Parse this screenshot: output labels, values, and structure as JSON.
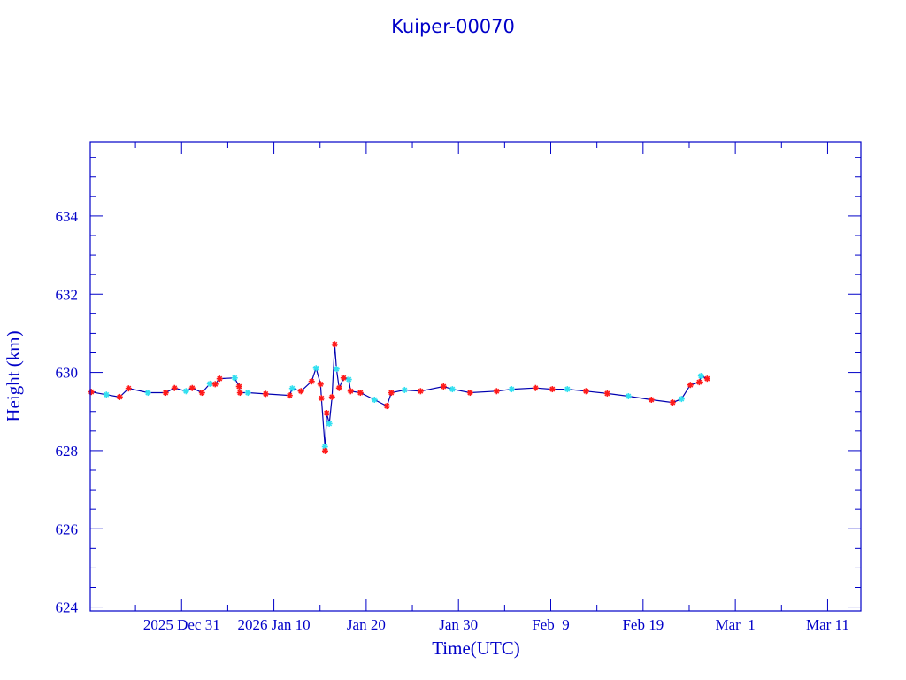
{
  "chart_data": {
    "type": "line",
    "title": "Kuiper-00070",
    "xlabel": "Time(UTC)",
    "ylabel": "Height (km)",
    "x_units": "days since 2025 Dec 31 00:00 UTC",
    "xlim": [
      -9.9,
      73.6
    ],
    "ylim": [
      623.9,
      635.9
    ],
    "x_ticks": [
      {
        "value": 0,
        "label": "2025 Dec 31"
      },
      {
        "value": 10,
        "label": "2026 Jan 10"
      },
      {
        "value": 20,
        "label": "Jan 20"
      },
      {
        "value": 30,
        "label": "Jan 30"
      },
      {
        "value": 40,
        "label": "Feb  9"
      },
      {
        "value": 50,
        "label": "Feb 19"
      },
      {
        "value": 60,
        "label": "Mar  1"
      },
      {
        "value": 70,
        "label": "Mar 11"
      }
    ],
    "y_ticks": [
      624,
      626,
      628,
      630,
      632,
      634
    ],
    "grid": false,
    "colors": {
      "axis": "#0000c8",
      "line": "#0000b0",
      "marker_a": "#ff1a1a",
      "marker_b": "#33e0f0"
    },
    "series": [
      {
        "name": "Height",
        "x": [
          -9.78,
          -8.15,
          -6.71,
          -5.75,
          -3.64,
          -1.73,
          -0.77,
          0.48,
          1.15,
          2.21,
          3.07,
          3.64,
          4.12,
          5.75,
          6.23,
          6.33,
          7.19,
          9.11,
          11.7,
          11.99,
          12.94,
          14.09,
          14.57,
          15.05,
          15.15,
          15.53,
          15.55,
          15.72,
          16.0,
          16.3,
          16.59,
          16.78,
          17.07,
          17.55,
          18.12,
          18.31,
          19.37,
          20.9,
          22.24,
          22.72,
          24.16,
          25.89,
          28.38,
          29.34,
          31.26,
          34.13,
          35.76,
          38.35,
          40.17,
          41.8,
          43.82,
          46.12,
          48.42,
          50.91,
          53.21,
          54.17,
          55.13,
          56.09,
          56.28,
          56.95
        ],
        "y": [
          629.5,
          629.43,
          629.37,
          629.59,
          629.48,
          629.48,
          629.6,
          629.52,
          629.6,
          629.48,
          629.71,
          629.7,
          629.84,
          629.86,
          629.64,
          629.48,
          629.48,
          629.45,
          629.41,
          629.59,
          629.52,
          629.77,
          630.11,
          629.7,
          629.34,
          628.1,
          627.99,
          628.96,
          628.69,
          629.37,
          630.72,
          630.09,
          629.6,
          629.86,
          629.82,
          629.52,
          629.48,
          629.3,
          629.14,
          629.48,
          629.55,
          629.52,
          629.64,
          629.57,
          629.48,
          629.52,
          629.57,
          629.6,
          629.57,
          629.57,
          629.52,
          629.46,
          629.39,
          629.3,
          629.23,
          629.32,
          629.68,
          629.75,
          629.91,
          629.84
        ]
      }
    ]
  }
}
